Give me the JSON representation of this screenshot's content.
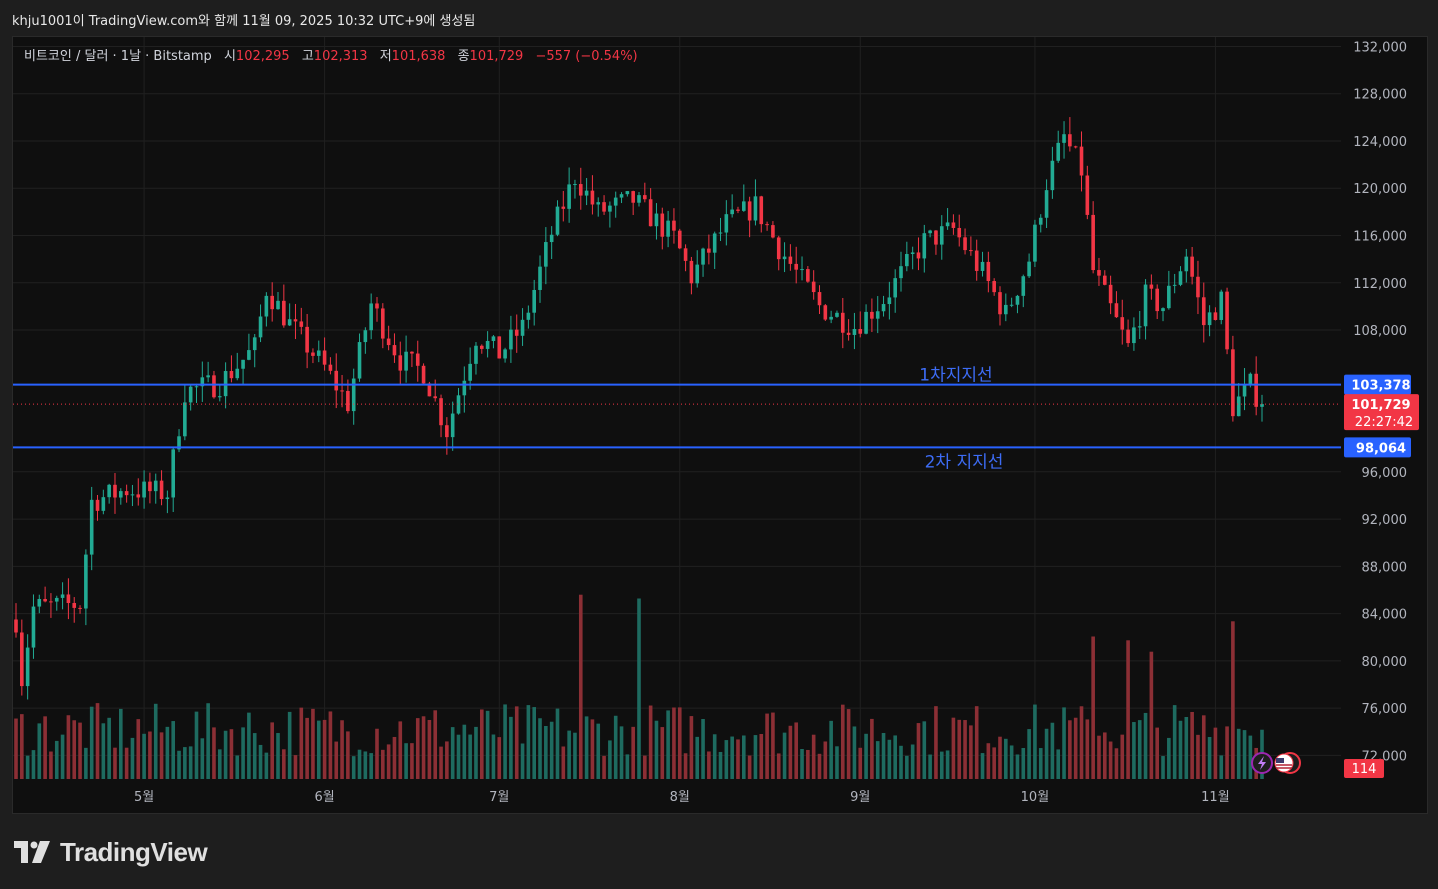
{
  "snapshot_caption": "khju1001이 TradingView.com와 함께 11월 09, 2025 10:32 UTC+9에 생성됨",
  "legend": {
    "symbol": "비트코인 / 달러 · 1날 · Bitstamp",
    "open_label": "시",
    "open": "102,295",
    "high_label": "고",
    "high": "102,313",
    "low_label": "저",
    "low": "101,638",
    "close_label": "종",
    "close": "101,729",
    "change": "−557 (−0.54%)"
  },
  "brand": "TradingView",
  "colors": {
    "up": "#22ab94",
    "down": "#f23645",
    "up_volume": "#1e6b60",
    "down_volume": "#8c2f35",
    "support_line": "#2962ff",
    "grid": "#202020",
    "background": "#0f0f0f"
  },
  "chart_data": {
    "type": "candlestick",
    "ylim": [
      70000,
      132800
    ],
    "y_ticks": [
      "132,000",
      "128,000",
      "124,000",
      "120,000",
      "116,000",
      "112,000",
      "108,000",
      "96,000",
      "92,000",
      "88,000",
      "84,000",
      "80,000",
      "76,000",
      "72,000"
    ],
    "y_tick_values": [
      132000,
      128000,
      124000,
      120000,
      116000,
      112000,
      108000,
      96000,
      92000,
      88000,
      84000,
      80000,
      76000,
      72000
    ],
    "x_months": [
      {
        "label": "5월",
        "date": "2025-05-01"
      },
      {
        "label": "6월",
        "date": "2025-06-01"
      },
      {
        "label": "7월",
        "date": "2025-07-01"
      },
      {
        "label": "8월",
        "date": "2025-08-01"
      },
      {
        "label": "9월",
        "date": "2025-09-01"
      },
      {
        "label": "10월",
        "date": "2025-10-01"
      },
      {
        "label": "11월",
        "date": "2025-11-01"
      }
    ],
    "date_range": [
      "2025-04-09",
      "2025-11-09"
    ],
    "price_path": [
      {
        "date": "2025-04-09",
        "price": 83500
      },
      {
        "date": "2025-04-10",
        "price": 78500
      },
      {
        "date": "2025-04-12",
        "price": 84500
      },
      {
        "date": "2025-04-20",
        "price": 84800
      },
      {
        "date": "2025-04-22",
        "price": 93500
      },
      {
        "date": "2025-04-28",
        "price": 94500
      },
      {
        "date": "2025-05-05",
        "price": 94200
      },
      {
        "date": "2025-05-08",
        "price": 102800
      },
      {
        "date": "2025-05-14",
        "price": 103500
      },
      {
        "date": "2025-05-20",
        "price": 106500
      },
      {
        "date": "2025-05-22",
        "price": 111500
      },
      {
        "date": "2025-05-26",
        "price": 108500
      },
      {
        "date": "2025-06-01",
        "price": 104800
      },
      {
        "date": "2025-06-05",
        "price": 101800
      },
      {
        "date": "2025-06-09",
        "price": 110200
      },
      {
        "date": "2025-06-14",
        "price": 105500
      },
      {
        "date": "2025-06-18",
        "price": 104500
      },
      {
        "date": "2025-06-22",
        "price": 99500
      },
      {
        "date": "2025-06-27",
        "price": 107500
      },
      {
        "date": "2025-07-01",
        "price": 106000
      },
      {
        "date": "2025-07-05",
        "price": 108200
      },
      {
        "date": "2025-07-10",
        "price": 116200
      },
      {
        "date": "2025-07-14",
        "price": 121000
      },
      {
        "date": "2025-07-18",
        "price": 118000
      },
      {
        "date": "2025-07-24",
        "price": 119000
      },
      {
        "date": "2025-07-31",
        "price": 115800
      },
      {
        "date": "2025-08-03",
        "price": 112500
      },
      {
        "date": "2025-08-09",
        "price": 117000
      },
      {
        "date": "2025-08-14",
        "price": 118500
      },
      {
        "date": "2025-08-18",
        "price": 115000
      },
      {
        "date": "2025-08-25",
        "price": 110000
      },
      {
        "date": "2025-08-31",
        "price": 108300
      },
      {
        "date": "2025-09-05",
        "price": 110600
      },
      {
        "date": "2025-09-12",
        "price": 115500
      },
      {
        "date": "2025-09-17",
        "price": 116500
      },
      {
        "date": "2025-09-22",
        "price": 112800
      },
      {
        "date": "2025-09-26",
        "price": 109300
      },
      {
        "date": "2025-09-30",
        "price": 114000
      },
      {
        "date": "2025-10-03",
        "price": 120500
      },
      {
        "date": "2025-10-06",
        "price": 124300
      },
      {
        "date": "2025-10-09",
        "price": 121500
      },
      {
        "date": "2025-10-11",
        "price": 113000
      },
      {
        "date": "2025-10-17",
        "price": 106500
      },
      {
        "date": "2025-10-20",
        "price": 110800
      },
      {
        "date": "2025-10-23",
        "price": 110000
      },
      {
        "date": "2025-10-27",
        "price": 114500
      },
      {
        "date": "2025-10-30",
        "price": 108500
      },
      {
        "date": "2025-11-02",
        "price": 110500
      },
      {
        "date": "2025-11-04",
        "price": 101500
      },
      {
        "date": "2025-11-07",
        "price": 103300
      },
      {
        "date": "2025-11-09",
        "price": 101729
      }
    ],
    "horizontal_lines": [
      {
        "label": "1차지지선",
        "value": 103378,
        "value_label": "103,378"
      },
      {
        "label": "2차 지지선",
        "value": 98064,
        "value_label": "98,064"
      }
    ],
    "last_price": {
      "value": 101729,
      "value_label": "101,729",
      "countdown": "22:27:42"
    },
    "volume_label": "114",
    "volume_spikes": [
      {
        "date": "2025-07-15",
        "level": 0.97
      },
      {
        "date": "2025-07-25",
        "level": 0.95
      },
      {
        "date": "2025-10-11",
        "level": 0.75
      },
      {
        "date": "2025-10-17",
        "level": 0.73
      },
      {
        "date": "2025-10-21",
        "level": 0.67
      },
      {
        "date": "2025-11-04",
        "level": 0.83
      }
    ]
  }
}
